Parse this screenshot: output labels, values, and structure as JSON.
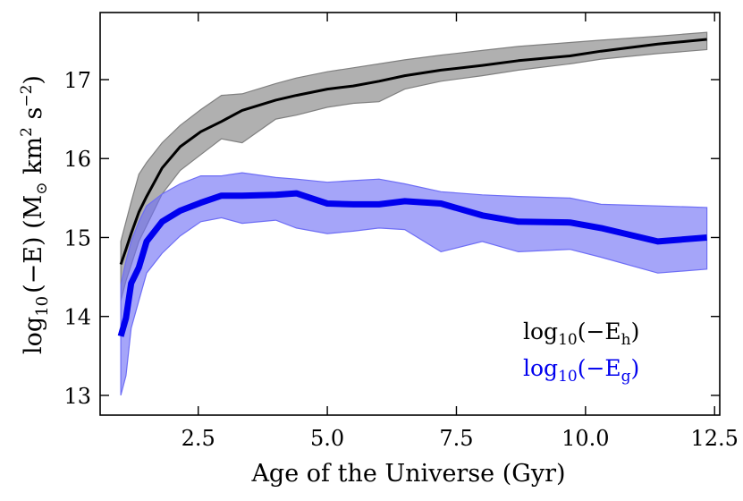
{
  "chart_data": {
    "type": "line",
    "title": "",
    "xlabel": "Age of the Universe (Gyr)",
    "ylabel": {
      "prefix": "log",
      "sub": "10",
      "rest": "(−E) (M",
      "sun": "⊙",
      "units": " km",
      "sq": "2",
      "s": " s",
      "neg2": "−2",
      "close": ")"
    },
    "xlim": [
      0.6,
      12.6
    ],
    "ylim": [
      12.75,
      17.85
    ],
    "xticks": [
      2.5,
      5.0,
      7.5,
      10.0,
      12.5
    ],
    "xtick_labels": [
      "2.5",
      "5.0",
      "7.5",
      "10.0",
      "12.5"
    ],
    "yticks": [
      13,
      14,
      15,
      16,
      17
    ],
    "ytick_labels": [
      "13",
      "14",
      "15",
      "16",
      "17"
    ],
    "grid": false,
    "legend": {
      "placement": "lower-right",
      "entries": [
        {
          "base": "log",
          "sub": "10",
          "mid": "(−E",
          "sub2": "h",
          "close": ")",
          "color": "#000000"
        },
        {
          "base": "log",
          "sub": "10",
          "mid": "(−E",
          "sub2": "g",
          "close": ")",
          "color": "#0000ee"
        }
      ]
    },
    "series": [
      {
        "name": "log10(-E_h)",
        "color": "#000000",
        "band_color": "#808080",
        "x": [
          1.0,
          1.1,
          1.2,
          1.35,
          1.5,
          1.8,
          2.15,
          2.55,
          2.95,
          3.35,
          4.0,
          4.4,
          5.0,
          5.5,
          6.0,
          6.5,
          7.2,
          8.0,
          8.7,
          9.7,
          10.3,
          11.4,
          12.35
        ],
        "y": [
          14.66,
          14.85,
          15.05,
          15.32,
          15.52,
          15.88,
          16.15,
          16.34,
          16.47,
          16.61,
          16.74,
          16.8,
          16.88,
          16.92,
          16.98,
          17.05,
          17.12,
          17.18,
          17.24,
          17.3,
          17.36,
          17.45,
          17.51
        ],
        "lower": [
          14.2,
          14.45,
          14.65,
          14.95,
          15.15,
          15.55,
          15.85,
          16.05,
          16.25,
          16.2,
          16.5,
          16.55,
          16.65,
          16.7,
          16.72,
          16.88,
          16.98,
          17.05,
          17.12,
          17.2,
          17.26,
          17.33,
          17.38
        ],
        "upper": [
          14.95,
          15.2,
          15.45,
          15.8,
          15.95,
          16.2,
          16.42,
          16.62,
          16.8,
          16.82,
          16.95,
          17.02,
          17.1,
          17.15,
          17.2,
          17.25,
          17.31,
          17.37,
          17.42,
          17.47,
          17.5,
          17.55,
          17.6
        ]
      },
      {
        "name": "log10(-E_g)",
        "color": "#0000ee",
        "band_color": "#6e6ef5",
        "x": [
          1.0,
          1.1,
          1.2,
          1.35,
          1.5,
          1.8,
          2.15,
          2.55,
          2.95,
          3.35,
          4.0,
          4.4,
          5.0,
          5.5,
          6.0,
          6.5,
          7.2,
          8.0,
          8.7,
          9.7,
          10.3,
          11.4,
          12.35
        ],
        "y": [
          13.75,
          13.98,
          14.42,
          14.62,
          14.95,
          15.2,
          15.34,
          15.44,
          15.53,
          15.53,
          15.54,
          15.56,
          15.43,
          15.42,
          15.42,
          15.46,
          15.43,
          15.28,
          15.2,
          15.19,
          15.12,
          14.95,
          15.0
        ],
        "lower": [
          13.0,
          13.25,
          13.85,
          14.2,
          14.55,
          14.8,
          15.02,
          15.2,
          15.25,
          15.18,
          15.22,
          15.12,
          15.05,
          15.08,
          15.12,
          15.1,
          14.82,
          14.95,
          14.82,
          14.85,
          14.75,
          14.55,
          14.6
        ],
        "upper": [
          14.4,
          14.7,
          14.95,
          15.2,
          15.4,
          15.55,
          15.68,
          15.78,
          15.78,
          15.82,
          15.76,
          15.74,
          15.7,
          15.72,
          15.74,
          15.68,
          15.58,
          15.54,
          15.52,
          15.5,
          15.42,
          15.4,
          15.38
        ]
      }
    ]
  }
}
